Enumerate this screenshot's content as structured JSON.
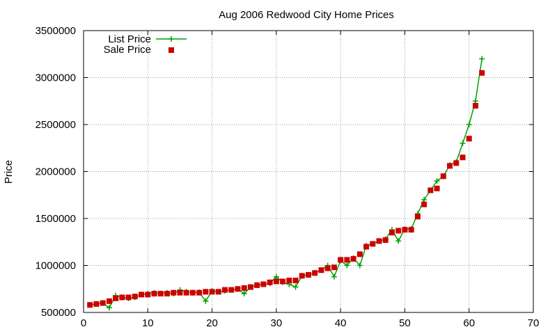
{
  "chart_data": {
    "type": "line",
    "title": "Aug 2006 Redwood City Home Prices",
    "xlabel": "",
    "ylabel": "Price",
    "xlim": [
      0,
      70
    ],
    "ylim": [
      500000,
      3500000
    ],
    "xticks": [
      "0",
      "10",
      "20",
      "30",
      "40",
      "50",
      "60",
      "70"
    ],
    "yticks": [
      "500000",
      "1000000",
      "1500000",
      "2000000",
      "2500000",
      "3000000",
      "3500000"
    ],
    "grid": true,
    "legend": "top-left",
    "series": [
      {
        "name": "List Price",
        "color": "#00a000",
        "marker": "plus",
        "line": true,
        "x": [
          1,
          2,
          3,
          4,
          5,
          6,
          7,
          8,
          9,
          10,
          11,
          12,
          13,
          14,
          15,
          16,
          17,
          18,
          19,
          20,
          21,
          22,
          23,
          24,
          25,
          26,
          27,
          28,
          29,
          30,
          31,
          32,
          33,
          34,
          35,
          36,
          37,
          38,
          39,
          40,
          41,
          42,
          43,
          44,
          45,
          46,
          47,
          48,
          49,
          50,
          51,
          52,
          53,
          54,
          55,
          56,
          57,
          58,
          59,
          60,
          61,
          62
        ],
        "y": [
          580000,
          590000,
          600000,
          550000,
          680000,
          660000,
          650000,
          660000,
          690000,
          700000,
          710000,
          700000,
          710000,
          700000,
          740000,
          720000,
          710000,
          715000,
          620000,
          730000,
          720000,
          730000,
          740000,
          750000,
          700000,
          770000,
          790000,
          800000,
          810000,
          880000,
          820000,
          800000,
          770000,
          890000,
          900000,
          920000,
          950000,
          1000000,
          880000,
          1050000,
          1000000,
          1080000,
          1000000,
          1210000,
          1230000,
          1260000,
          1280000,
          1380000,
          1260000,
          1390000,
          1390000,
          1550000,
          1700000,
          1800000,
          1900000,
          1950000,
          2070000,
          2100000,
          2300000,
          2500000,
          2750000,
          3200000
        ]
      },
      {
        "name": "Sale Price",
        "color": "#cc0000",
        "marker": "square",
        "line": false,
        "x": [
          1,
          2,
          3,
          4,
          5,
          6,
          7,
          8,
          9,
          10,
          11,
          12,
          13,
          14,
          15,
          16,
          17,
          18,
          19,
          20,
          21,
          22,
          23,
          24,
          25,
          26,
          27,
          28,
          29,
          30,
          31,
          32,
          33,
          34,
          35,
          36,
          37,
          38,
          39,
          40,
          41,
          42,
          43,
          44,
          45,
          46,
          47,
          48,
          49,
          50,
          51,
          52,
          53,
          54,
          55,
          56,
          57,
          58,
          59,
          60,
          61,
          62
        ],
        "y": [
          580000,
          590000,
          600000,
          620000,
          650000,
          660000,
          660000,
          670000,
          690000,
          690000,
          700000,
          700000,
          700000,
          710000,
          710000,
          710000,
          710000,
          710000,
          720000,
          720000,
          720000,
          740000,
          740000,
          750000,
          760000,
          770000,
          790000,
          800000,
          820000,
          830000,
          830000,
          840000,
          840000,
          890000,
          900000,
          920000,
          950000,
          970000,
          980000,
          1060000,
          1060000,
          1070000,
          1120000,
          1200000,
          1230000,
          1260000,
          1270000,
          1350000,
          1370000,
          1380000,
          1380000,
          1520000,
          1650000,
          1800000,
          1820000,
          1950000,
          2060000,
          2090000,
          2150000,
          2350000,
          2700000,
          3050000
        ]
      }
    ]
  }
}
